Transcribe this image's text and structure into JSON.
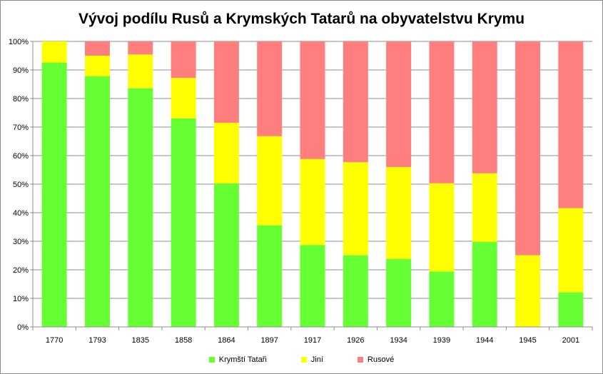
{
  "chart_data": {
    "type": "bar",
    "stacked": true,
    "normalized": true,
    "title": "Vývoj podílu Rusů a Krymských Tatarů na obyvatelstvu Krymu",
    "xlabel": "",
    "ylabel": "",
    "categories": [
      "1770",
      "1793",
      "1835",
      "1858",
      "1864",
      "1897",
      "1917",
      "1926",
      "1934",
      "1939",
      "1944",
      "1945",
      "2001"
    ],
    "y_ticks": [
      "0%",
      "10%",
      "20%",
      "30%",
      "40%",
      "50%",
      "60%",
      "70%",
      "80%",
      "90%",
      "100%"
    ],
    "ylim": [
      0,
      100
    ],
    "grid": true,
    "legend_position": "bottom",
    "series": [
      {
        "name": "Krymští Tataři",
        "color": "#66ff33",
        "values": [
          92.6,
          87.8,
          83.6,
          73.0,
          50.3,
          35.6,
          28.7,
          25.1,
          23.8,
          19.4,
          29.8,
          0.0,
          12.1
        ]
      },
      {
        "name": "Jiní",
        "color": "#ffff00",
        "values": [
          7.4,
          7.2,
          11.8,
          14.2,
          21.2,
          31.2,
          30.1,
          32.6,
          32.2,
          30.9,
          24.0,
          25.1,
          29.5
        ]
      },
      {
        "name": "Rusové",
        "color": "#ff7f7f",
        "values": [
          0.0,
          5.0,
          4.6,
          12.8,
          28.5,
          33.2,
          41.2,
          42.3,
          44.0,
          49.7,
          46.2,
          74.9,
          58.4
        ]
      }
    ]
  }
}
